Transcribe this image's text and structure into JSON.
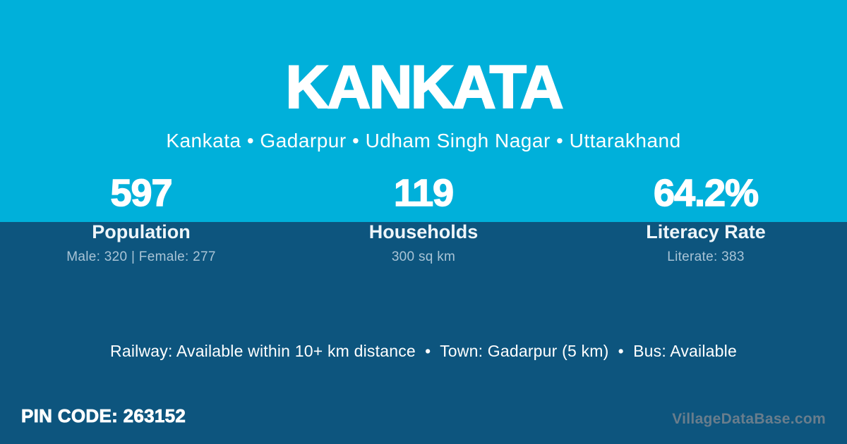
{
  "colors": {
    "top_background": "#00b0da",
    "bottom_background": "#0d557e",
    "text_primary": "#ffffff",
    "text_muted": "#a9c4d6",
    "watermark": "#697d8c"
  },
  "header": {
    "title": "KANKATA",
    "breadcrumb": {
      "items": [
        "Kankata",
        "Gadarpur",
        "Udham Singh Nagar",
        "Uttarakhand"
      ],
      "display": "Kankata • Gadarpur • Udham Singh Nagar • Uttarakhand"
    }
  },
  "stats": {
    "items": [
      {
        "value": "597",
        "label": "Population",
        "sub": "Male: 320 | Female: 277"
      },
      {
        "value": "119",
        "label": "Households",
        "sub": "300 sq km"
      },
      {
        "value": "64.2%",
        "label": "Literacy Rate",
        "sub": "Literate: 383"
      }
    ]
  },
  "facilities": {
    "items": [
      {
        "label": "Railway",
        "value": "Available within 10+ km distance"
      },
      {
        "label": "Town",
        "value": "Gadarpur (5 km)"
      },
      {
        "label": "Bus",
        "value": "Available"
      }
    ],
    "display": "Railway: Available within 10+ km distance  •  Town: Gadarpur (5 km)  •  Bus: Available"
  },
  "footer": {
    "pin_code_label": "PIN CODE:",
    "pin_code": "263152",
    "pin_display": "PIN CODE: 263152",
    "watermark": "VillageDataBase.com"
  }
}
